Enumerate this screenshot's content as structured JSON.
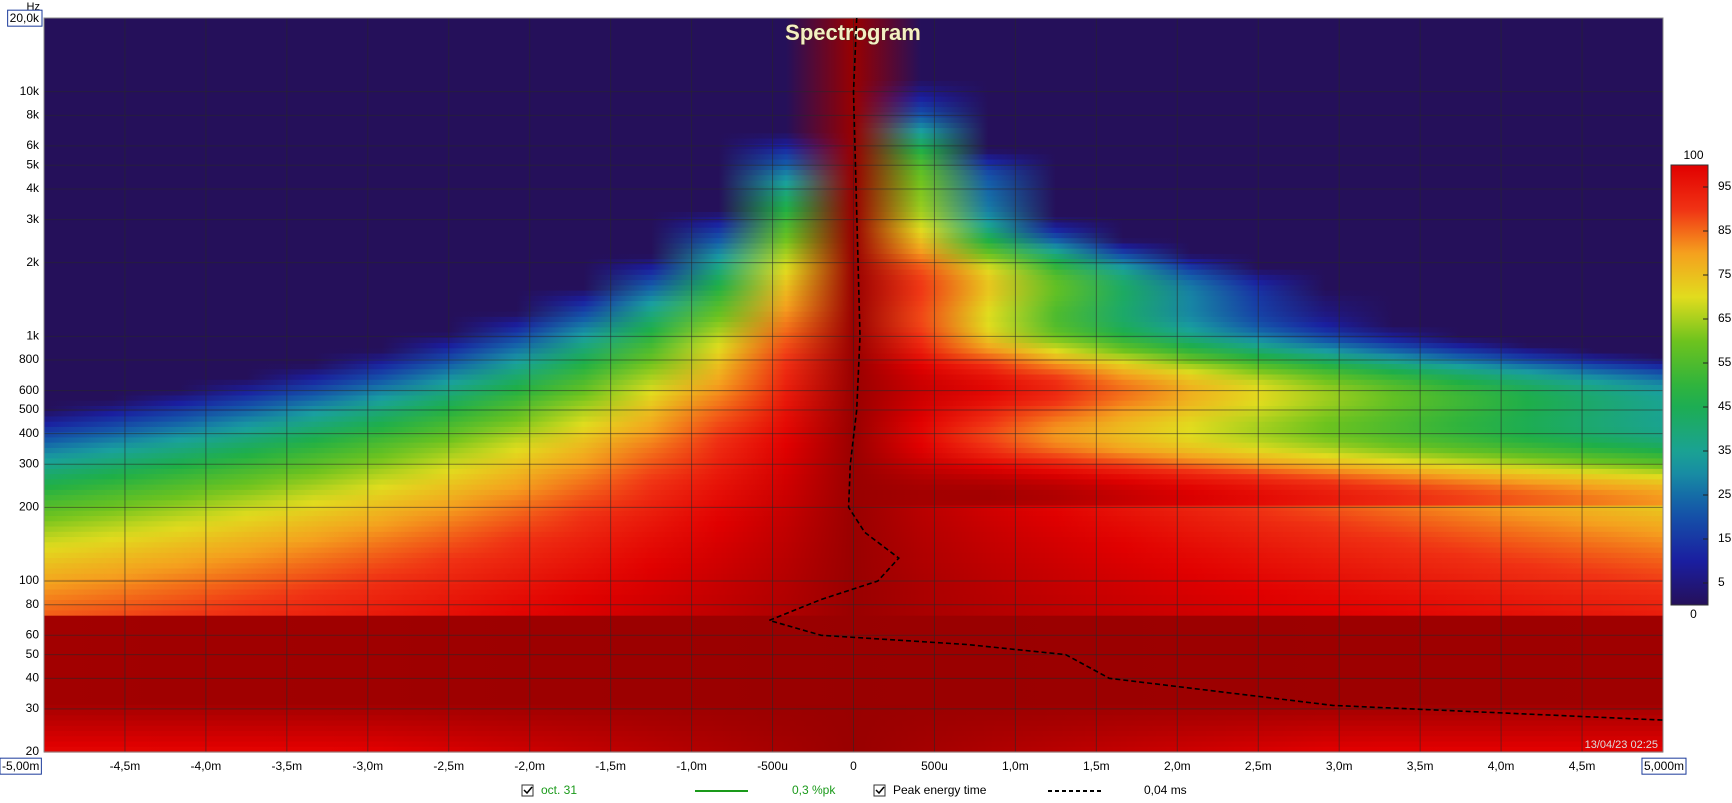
{
  "chart_data": {
    "type": "spectrogram",
    "title": "Spectrogram",
    "ylabel": "Hz",
    "timestamp": "13/04/23 02:25",
    "log_y": true,
    "xlim": [
      -5,
      5
    ],
    "ylim": [
      20,
      20000
    ],
    "xticks": [
      {
        "value": -5,
        "label": "-5,00m"
      },
      {
        "value": -4.5,
        "label": "-4,5m"
      },
      {
        "value": -4,
        "label": "-4,0m"
      },
      {
        "value": -3.5,
        "label": "-3,5m"
      },
      {
        "value": -3,
        "label": "-3,0m"
      },
      {
        "value": -2.5,
        "label": "-2,5m"
      },
      {
        "value": -2,
        "label": "-2,0m"
      },
      {
        "value": -1.5,
        "label": "-1,5m"
      },
      {
        "value": -1,
        "label": "-1,0m"
      },
      {
        "value": -0.5,
        "label": "-500u"
      },
      0,
      {
        "value": 0.5,
        "label": "500u"
      },
      {
        "value": 1,
        "label": "1,0m"
      },
      {
        "value": 1.5,
        "label": "1,5m"
      },
      {
        "value": 2,
        "label": "2,0m"
      },
      {
        "value": 2.5,
        "label": "2,5m"
      },
      {
        "value": 3,
        "label": "3,0m"
      },
      {
        "value": 3.5,
        "label": "3,5m"
      },
      {
        "value": 4,
        "label": "4,0m"
      },
      {
        "value": 4.5,
        "label": "4,5m"
      },
      {
        "value": 5,
        "label": "5,000m"
      }
    ],
    "yticks": [
      20,
      30,
      40,
      50,
      60,
      80,
      100,
      200,
      300,
      400,
      500,
      600,
      800,
      {
        "value": 1000,
        "label": "1k"
      },
      {
        "value": 2000,
        "label": "2k"
      },
      {
        "value": 3000,
        "label": "3k"
      },
      {
        "value": 4000,
        "label": "4k"
      },
      {
        "value": 5000,
        "label": "5k"
      },
      {
        "value": 6000,
        "label": "6k"
      },
      {
        "value": 8000,
        "label": "8k"
      },
      {
        "value": 10000,
        "label": "10k"
      },
      {
        "value": 20000,
        "label": "20,0k"
      }
    ],
    "grid": true,
    "colorbar": {
      "lim": [
        0,
        100
      ],
      "ticks": [
        0,
        5,
        15,
        25,
        35,
        45,
        55,
        65,
        75,
        85,
        95,
        100
      ]
    },
    "smoothing": {
      "label": "oct. 31",
      "value_text": "0,3 %pk",
      "color": "#1a9a1a"
    },
    "series": [
      {
        "name": "Peak energy time",
        "legend_value": "0,04 ms",
        "color": "#000000",
        "dashed": true,
        "x": [
          0.02,
          0.0,
          0.04,
          0.02,
          -0.02,
          -0.03,
          0.07,
          0.28,
          0.15,
          -0.2,
          -0.52,
          -0.2,
          0.7,
          1.31,
          1.58,
          2.96,
          5.0
        ],
        "values": [
          20000,
          10000,
          1000,
          500,
          300,
          200,
          158,
          124,
          100,
          84,
          69,
          60,
          55,
          50,
          40,
          31,
          27
        ]
      }
    ]
  }
}
